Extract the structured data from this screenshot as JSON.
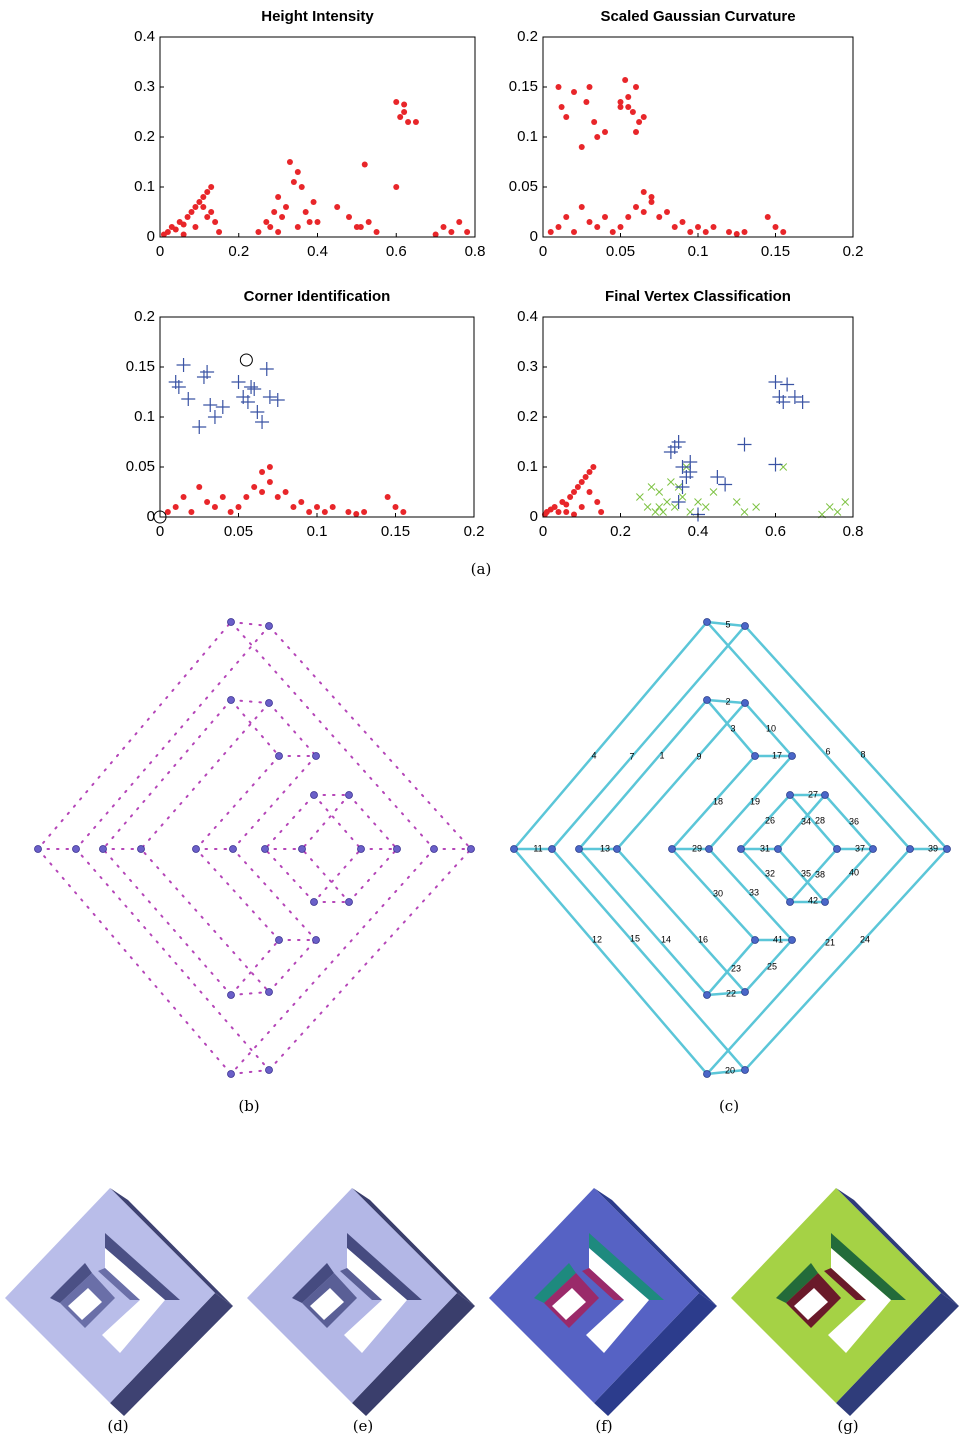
{
  "chart_data": [
    {
      "type": "scatter",
      "title": "Height Intensity",
      "xlim": [
        0,
        0.8
      ],
      "ylim": [
        0,
        0.4
      ],
      "xticks": [
        0,
        0.2,
        0.4,
        0.6,
        0.8
      ],
      "yticks": [
        0,
        0.1,
        0.2,
        0.3,
        0.4
      ],
      "series": [
        {
          "color": "#e8262a",
          "marker": "dot",
          "x": [
            0.01,
            0.02,
            0.03,
            0.04,
            0.05,
            0.06,
            0.07,
            0.08,
            0.09,
            0.1,
            0.11,
            0.12,
            0.13,
            0.14,
            0.15,
            0.06,
            0.09,
            0.12,
            0.11,
            0.13,
            0.25,
            0.27,
            0.29,
            0.3,
            0.31,
            0.32,
            0.33,
            0.34,
            0.35,
            0.36,
            0.37,
            0.38,
            0.39,
            0.28,
            0.3,
            0.35,
            0.4,
            0.45,
            0.48,
            0.5,
            0.52,
            0.53,
            0.55,
            0.6,
            0.61,
            0.62,
            0.63,
            0.65,
            0.6,
            0.62,
            0.7,
            0.72,
            0.74,
            0.76,
            0.78,
            0.51
          ],
          "values": [
            0.005,
            0.01,
            0.02,
            0.015,
            0.03,
            0.025,
            0.04,
            0.05,
            0.06,
            0.07,
            0.08,
            0.09,
            0.1,
            0.03,
            0.01,
            0.005,
            0.02,
            0.04,
            0.06,
            0.05,
            0.01,
            0.03,
            0.05,
            0.08,
            0.04,
            0.06,
            0.15,
            0.11,
            0.13,
            0.1,
            0.05,
            0.03,
            0.07,
            0.02,
            0.01,
            0.02,
            0.03,
            0.06,
            0.04,
            0.02,
            0.145,
            0.03,
            0.01,
            0.27,
            0.24,
            0.265,
            0.23,
            0.23,
            0.1,
            0.25,
            0.005,
            0.02,
            0.01,
            0.03,
            0.01,
            0.02
          ]
        }
      ]
    },
    {
      "type": "scatter",
      "title": "Scaled Gaussian Curvature",
      "xlim": [
        0,
        0.2
      ],
      "ylim": [
        0,
        0.2
      ],
      "xticks": [
        0,
        0.05,
        0.1,
        0.15,
        0.2
      ],
      "yticks": [
        0,
        0.05,
        0.1,
        0.15,
        0.2
      ],
      "series": [
        {
          "color": "#e8262a",
          "marker": "dot",
          "x": [
            0.005,
            0.01,
            0.015,
            0.02,
            0.025,
            0.03,
            0.035,
            0.04,
            0.045,
            0.05,
            0.055,
            0.06,
            0.065,
            0.07,
            0.075,
            0.08,
            0.085,
            0.09,
            0.095,
            0.1,
            0.105,
            0.11,
            0.12,
            0.125,
            0.13,
            0.145,
            0.15,
            0.155,
            0.07,
            0.065,
            0.01,
            0.012,
            0.015,
            0.02,
            0.025,
            0.028,
            0.03,
            0.033,
            0.035,
            0.04,
            0.05,
            0.053,
            0.055,
            0.058,
            0.06,
            0.062,
            0.065,
            0.055,
            0.05,
            0.06
          ],
          "values": [
            0.005,
            0.01,
            0.02,
            0.005,
            0.03,
            0.015,
            0.01,
            0.02,
            0.005,
            0.01,
            0.02,
            0.03,
            0.045,
            0.035,
            0.02,
            0.025,
            0.01,
            0.015,
            0.005,
            0.01,
            0.005,
            0.01,
            0.005,
            0.003,
            0.005,
            0.02,
            0.01,
            0.005,
            0.04,
            0.025,
            0.15,
            0.13,
            0.12,
            0.145,
            0.09,
            0.135,
            0.15,
            0.115,
            0.1,
            0.105,
            0.135,
            0.157,
            0.13,
            0.125,
            0.15,
            0.115,
            0.12,
            0.14,
            0.13,
            0.105
          ]
        }
      ]
    },
    {
      "type": "scatter",
      "title": "Corner Identification",
      "xlim": [
        0,
        0.2
      ],
      "ylim": [
        0,
        0.2
      ],
      "xticks": [
        0,
        0.05,
        0.1,
        0.15,
        0.2
      ],
      "yticks": [
        0,
        0.05,
        0.1,
        0.15,
        0.2
      ],
      "series": [
        {
          "color": "#e8262a",
          "marker": "dot",
          "x": [
            0.005,
            0.01,
            0.015,
            0.02,
            0.025,
            0.03,
            0.035,
            0.04,
            0.045,
            0.05,
            0.055,
            0.06,
            0.065,
            0.07,
            0.075,
            0.08,
            0.085,
            0.09,
            0.095,
            0.1,
            0.105,
            0.11,
            0.12,
            0.125,
            0.13,
            0.145,
            0.15,
            0.155,
            0.07,
            0.065
          ],
          "values": [
            0.005,
            0.01,
            0.02,
            0.005,
            0.03,
            0.015,
            0.01,
            0.02,
            0.005,
            0.01,
            0.02,
            0.03,
            0.045,
            0.035,
            0.02,
            0.025,
            0.01,
            0.015,
            0.005,
            0.01,
            0.005,
            0.01,
            0.005,
            0.003,
            0.005,
            0.02,
            0.01,
            0.005,
            0.05,
            0.025
          ]
        },
        {
          "color": "#3a53a4",
          "marker": "plus",
          "x": [
            0.01,
            0.012,
            0.015,
            0.018,
            0.025,
            0.028,
            0.03,
            0.032,
            0.035,
            0.04,
            0.05,
            0.053,
            0.056,
            0.058,
            0.06,
            0.062,
            0.065,
            0.068,
            0.07,
            0.075
          ],
          "values": [
            0.135,
            0.13,
            0.152,
            0.118,
            0.09,
            0.14,
            0.145,
            0.112,
            0.1,
            0.11,
            0.135,
            0.12,
            0.115,
            0.13,
            0.128,
            0.105,
            0.095,
            0.148,
            0.12,
            0.117
          ]
        },
        {
          "color": "#000000",
          "marker": "circle",
          "x": [
            0,
            0.055
          ],
          "values": [
            0,
            0.157
          ]
        }
      ]
    },
    {
      "type": "scatter",
      "title": "Final Vertex Classification",
      "xlim": [
        0,
        0.8
      ],
      "ylim": [
        0,
        0.4
      ],
      "xticks": [
        0,
        0.2,
        0.4,
        0.6,
        0.8
      ],
      "yticks": [
        0,
        0.1,
        0.2,
        0.3,
        0.4
      ],
      "series": [
        {
          "color": "#e8262a",
          "marker": "dot",
          "x": [
            0.005,
            0.01,
            0.02,
            0.03,
            0.04,
            0.05,
            0.06,
            0.07,
            0.08,
            0.09,
            0.1,
            0.11,
            0.12,
            0.13,
            0.14,
            0.15,
            0.08,
            0.1,
            0.12,
            0.06
          ],
          "values": [
            0.005,
            0.01,
            0.015,
            0.02,
            0.01,
            0.03,
            0.025,
            0.04,
            0.05,
            0.06,
            0.07,
            0.08,
            0.09,
            0.1,
            0.03,
            0.01,
            0.005,
            0.02,
            0.05,
            0.01
          ]
        },
        {
          "color": "#7dc242",
          "marker": "cross",
          "x": [
            0.25,
            0.27,
            0.28,
            0.3,
            0.31,
            0.32,
            0.33,
            0.34,
            0.36,
            0.38,
            0.4,
            0.42,
            0.44,
            0.3,
            0.35,
            0.5,
            0.52,
            0.55,
            0.62,
            0.72,
            0.74,
            0.76,
            0.78,
            0.37,
            0.29
          ],
          "values": [
            0.04,
            0.02,
            0.06,
            0.05,
            0.01,
            0.03,
            0.07,
            0.02,
            0.04,
            0.01,
            0.03,
            0.02,
            0.05,
            0.02,
            0.06,
            0.03,
            0.01,
            0.02,
            0.1,
            0.005,
            0.02,
            0.01,
            0.03,
            0.1,
            0.01
          ]
        },
        {
          "color": "#3a53a4",
          "marker": "plus",
          "x": [
            0.33,
            0.35,
            0.36,
            0.37,
            0.38,
            0.35,
            0.36,
            0.38,
            0.34,
            0.4,
            0.45,
            0.47,
            0.52,
            0.6,
            0.6,
            0.61,
            0.62,
            0.63,
            0.65,
            0.67
          ],
          "values": [
            0.13,
            0.15,
            0.1,
            0.08,
            0.11,
            0.03,
            0.06,
            0.09,
            0.14,
            0.005,
            0.08,
            0.065,
            0.145,
            0.105,
            0.27,
            0.24,
            0.23,
            0.265,
            0.24,
            0.23
          ]
        }
      ]
    }
  ],
  "captions": [
    "(a)",
    "(b)",
    "(c)",
    "(d)",
    "(e)",
    "(f)",
    "(g)"
  ],
  "diagram_c": {
    "labels": [
      "5",
      "2",
      "10",
      "3",
      "17",
      "4",
      "7",
      "1",
      "9",
      "6",
      "8",
      "18",
      "19",
      "27",
      "26",
      "34",
      "28",
      "36",
      "11",
      "13",
      "29",
      "31",
      "37",
      "39",
      "30",
      "32",
      "35",
      "38",
      "40",
      "33",
      "42",
      "12",
      "15",
      "14",
      "16",
      "41",
      "21",
      "24",
      "23",
      "25",
      "22",
      "20"
    ]
  }
}
